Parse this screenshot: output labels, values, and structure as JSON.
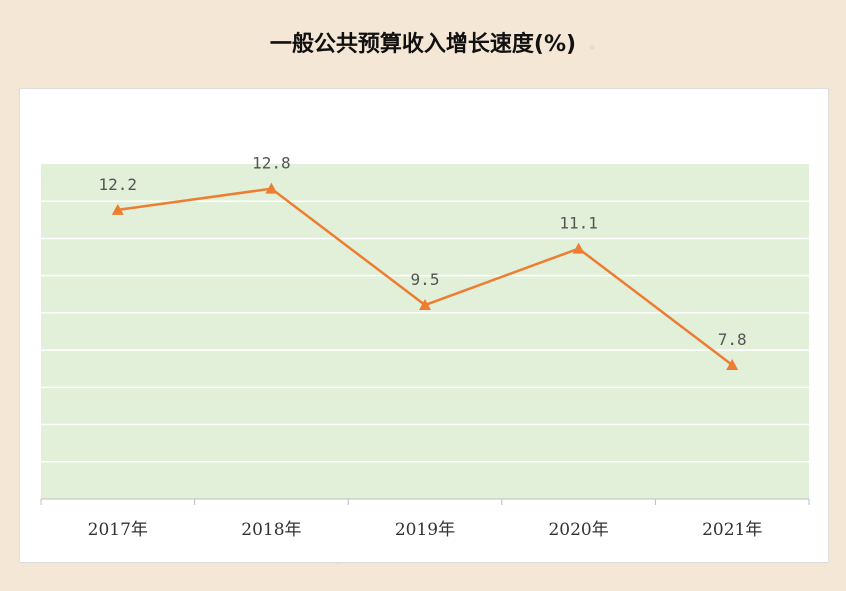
{
  "chart_data": {
    "type": "line",
    "title": "一般公共预算收入增长速度(%)",
    "categories": [
      "2017年",
      "2018年",
      "2019年",
      "2020年",
      "2021年"
    ],
    "values": [
      12.2,
      12.8,
      9.5,
      11.1,
      7.8
    ],
    "value_labels": [
      "12.2",
      "12.8",
      "9.5",
      "11.1",
      "7.8"
    ],
    "ylim": [
      4,
      13.5
    ],
    "grid": true,
    "colors": {
      "line": "#ed7d31",
      "plot_bg": "#e2efd9",
      "grid": "#ffffff"
    }
  }
}
